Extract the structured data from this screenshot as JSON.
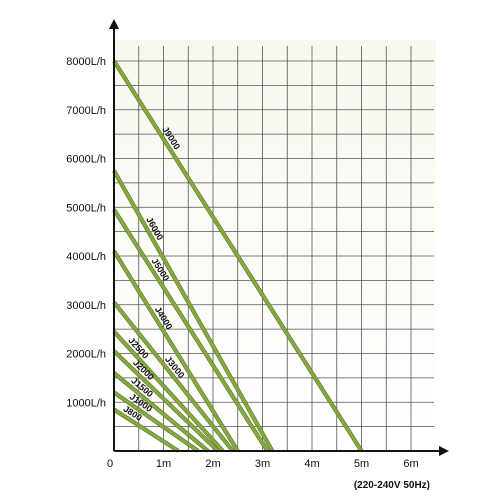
{
  "chart_data": {
    "type": "line",
    "title": "",
    "xlabel": "",
    "ylabel": "",
    "xlim": [
      0,
      6.5
    ],
    "ylim": [
      0,
      8800
    ],
    "grid": true,
    "x_ticks": [
      {
        "value": 0,
        "label": "0"
      },
      {
        "value": 1,
        "label": "1m"
      },
      {
        "value": 2,
        "label": "2m"
      },
      {
        "value": 3,
        "label": "3m"
      },
      {
        "value": 4,
        "label": "4m"
      },
      {
        "value": 5,
        "label": "5m"
      },
      {
        "value": 6,
        "label": "6m"
      }
    ],
    "y_ticks": [
      {
        "value": 1000,
        "label": "1000L/h"
      },
      {
        "value": 2000,
        "label": "2000L/h"
      },
      {
        "value": 3000,
        "label": "3000L/h"
      },
      {
        "value": 4000,
        "label": "4000L/h"
      },
      {
        "value": 5000,
        "label": "5000L/h"
      },
      {
        "value": 6000,
        "label": "6000L/h"
      },
      {
        "value": 7000,
        "label": "7000L/h"
      },
      {
        "value": 8000,
        "label": "8000L/h"
      }
    ],
    "series": [
      {
        "name": "J9000",
        "x": [
          0,
          5.0
        ],
        "y": [
          8000,
          0
        ]
      },
      {
        "name": "J6000",
        "x": [
          0,
          3.2
        ],
        "y": [
          5750,
          0
        ]
      },
      {
        "name": "J5000",
        "x": [
          0,
          3.1
        ],
        "y": [
          4950,
          0
        ]
      },
      {
        "name": "J4000",
        "x": [
          0,
          2.5
        ],
        "y": [
          4100,
          0
        ]
      },
      {
        "name": "J3000",
        "x": [
          0,
          2.4
        ],
        "y": [
          3050,
          0
        ]
      },
      {
        "name": "J2500",
        "x": [
          0,
          2.2
        ],
        "y": [
          2450,
          0
        ]
      },
      {
        "name": "J2000",
        "x": [
          0,
          2.1
        ],
        "y": [
          2050,
          0
        ]
      },
      {
        "name": "J1500",
        "x": [
          0,
          1.9
        ],
        "y": [
          1600,
          0
        ]
      },
      {
        "name": "J1000",
        "x": [
          0,
          1.7
        ],
        "y": [
          1200,
          0
        ]
      },
      {
        "name": "J800",
        "x": [
          0,
          1.3
        ],
        "y": [
          850,
          0
        ]
      }
    ],
    "label_positions": [
      0.18,
      0.18,
      0.22,
      0.3,
      0.4,
      0.1,
      0.15,
      0.15,
      0.15,
      0.1
    ],
    "colors": {
      "line": "#86a843",
      "line_edge": "#5a7a22",
      "grid": "#555555",
      "plot_background_top": "#f6f9ee",
      "plot_background_bottom": "#ffffff",
      "axis": "#111111"
    },
    "footnote": "(220-240V  50Hz)"
  }
}
